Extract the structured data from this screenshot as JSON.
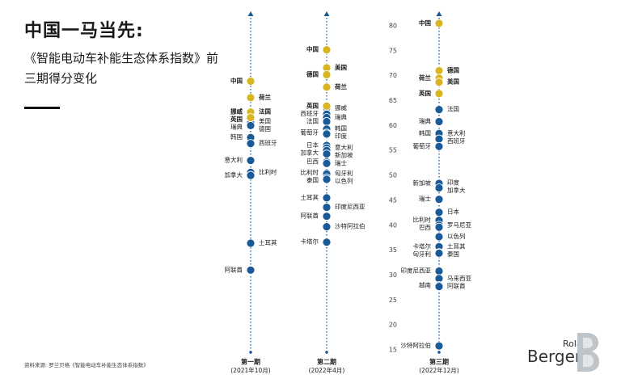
{
  "header": {
    "title": "中国一马当先:",
    "subtitle": "《智能电动车补能生态体系指数》前三期得分变化"
  },
  "footer": {
    "source": "资料来源: 罗兰贝格《智能电动车补能生态体系指数》",
    "logo_top": "Roland",
    "logo_main": "Berger"
  },
  "colors": {
    "highlight": "#D8B621",
    "normal": "#1A5A96",
    "axis": "#1A5A96"
  },
  "chart_data": {
    "type": "scatter",
    "y_axis": {
      "ticks": [
        80,
        75,
        70,
        65,
        60,
        55,
        50,
        45,
        40,
        35,
        30,
        25,
        20,
        15
      ],
      "ylim": [
        15,
        80
      ]
    },
    "periods": [
      {
        "name": "第一期",
        "date": "(2021年10月)",
        "points": [
          {
            "label": "中国",
            "value": 68.9,
            "highlight": true
          },
          {
            "label": "荷兰",
            "value": 65.6,
            "highlight": true
          },
          {
            "label": "挪威",
            "value": 62.7,
            "highlight": true
          },
          {
            "label": "法国",
            "value": 62.7,
            "highlight": true
          },
          {
            "label": "英国",
            "value": 61.6,
            "highlight": true
          },
          {
            "label": "美国",
            "value": 60.8,
            "highlight": false
          },
          {
            "label": "瑞典",
            "value": 60.5,
            "highlight": false
          },
          {
            "label": "德国",
            "value": 60.0,
            "highlight": false
          },
          {
            "label": "韩国",
            "value": 57.6,
            "highlight": false
          },
          {
            "label": "西班牙",
            "value": 56.4,
            "highlight": false
          },
          {
            "label": "意大利",
            "value": 53.0,
            "highlight": false
          },
          {
            "label": "比利时",
            "value": 50.6,
            "highlight": false
          },
          {
            "label": "加拿大",
            "value": 50.0,
            "highlight": false
          },
          {
            "label": "土耳其",
            "value": 36.4,
            "highlight": false
          },
          {
            "label": "阿联酋",
            "value": 31.0,
            "highlight": false
          }
        ]
      },
      {
        "name": "第二期",
        "date": "(2022年4月)",
        "points": [
          {
            "label": "中国",
            "value": 75.2,
            "highlight": true
          },
          {
            "label": "美国",
            "value": 71.6,
            "highlight": true
          },
          {
            "label": "德国",
            "value": 70.2,
            "highlight": true
          },
          {
            "label": "荷兰",
            "value": 67.7,
            "highlight": true
          },
          {
            "label": "英国",
            "value": 63.9,
            "highlight": true
          },
          {
            "label": "挪威",
            "value": 63.5,
            "highlight": false
          },
          {
            "label": "西班牙",
            "value": 62.3,
            "highlight": false
          },
          {
            "label": "瑞典",
            "value": 61.6,
            "highlight": false
          },
          {
            "label": "法国",
            "value": 60.8,
            "highlight": false
          },
          {
            "label": "韩国",
            "value": 59.3,
            "highlight": false
          },
          {
            "label": "葡萄牙",
            "value": 58.5,
            "highlight": false
          },
          {
            "label": "印度",
            "value": 58.3,
            "highlight": false
          },
          {
            "label": "日本",
            "value": 56.0,
            "highlight": false
          },
          {
            "label": "意大利",
            "value": 55.5,
            "highlight": false
          },
          {
            "label": "加拿大",
            "value": 55.0,
            "highlight": false
          },
          {
            "label": "新加坡",
            "value": 54.3,
            "highlight": false
          },
          {
            "label": "巴西",
            "value": 52.7,
            "highlight": false
          },
          {
            "label": "瑞士",
            "value": 52.4,
            "highlight": false
          },
          {
            "label": "比利时",
            "value": 50.5,
            "highlight": false
          },
          {
            "label": "匈牙利",
            "value": 50.3,
            "highlight": false
          },
          {
            "label": "泰国",
            "value": 49.5,
            "highlight": false
          },
          {
            "label": "以色列",
            "value": 49.2,
            "highlight": false
          },
          {
            "label": "土耳其",
            "value": 45.5,
            "highlight": false
          },
          {
            "label": "印度尼西亚",
            "value": 43.6,
            "highlight": false
          },
          {
            "label": "阿联酋",
            "value": 41.8,
            "highlight": false
          },
          {
            "label": "沙特阿拉伯",
            "value": 39.7,
            "highlight": false
          },
          {
            "label": "卡塔尔",
            "value": 36.6,
            "highlight": false
          }
        ]
      },
      {
        "name": "第三期",
        "date": "(2022年12月)",
        "points": [
          {
            "label": "中国",
            "value": 80.5,
            "highlight": true
          },
          {
            "label": "德国",
            "value": 71.0,
            "highlight": true
          },
          {
            "label": "荷兰",
            "value": 69.5,
            "highlight": true
          },
          {
            "label": "美国",
            "value": 68.7,
            "highlight": true
          },
          {
            "label": "英国",
            "value": 66.4,
            "highlight": true
          },
          {
            "label": "法国",
            "value": 63.2,
            "highlight": false
          },
          {
            "label": "瑞典",
            "value": 60.8,
            "highlight": false
          },
          {
            "label": "意大利",
            "value": 58.4,
            "highlight": false
          },
          {
            "label": "韩国",
            "value": 58.4,
            "highlight": false
          },
          {
            "label": "西班牙",
            "value": 57.3,
            "highlight": false
          },
          {
            "label": "葡萄牙",
            "value": 55.8,
            "highlight": false
          },
          {
            "label": "印度",
            "value": 48.5,
            "highlight": false
          },
          {
            "label": "新加坡",
            "value": 48.4,
            "highlight": false
          },
          {
            "label": "加拿大",
            "value": 47.5,
            "highlight": false
          },
          {
            "label": "瑞士",
            "value": 45.2,
            "highlight": false
          },
          {
            "label": "日本",
            "value": 42.6,
            "highlight": false
          },
          {
            "label": "比利时",
            "value": 41.0,
            "highlight": false
          },
          {
            "label": "罗马尼亚",
            "value": 40.0,
            "highlight": false
          },
          {
            "label": "巴西",
            "value": 39.6,
            "highlight": false
          },
          {
            "label": "以色列",
            "value": 37.7,
            "highlight": false
          },
          {
            "label": "卡塔尔",
            "value": 35.7,
            "highlight": false
          },
          {
            "label": "土耳其",
            "value": 35.7,
            "highlight": false
          },
          {
            "label": "匈牙利",
            "value": 34.5,
            "highlight": false
          },
          {
            "label": "泰国",
            "value": 34.4,
            "highlight": false
          },
          {
            "label": "印度尼西亚",
            "value": 30.8,
            "highlight": false
          },
          {
            "label": "马来西亚",
            "value": 29.3,
            "highlight": false
          },
          {
            "label": "越南",
            "value": 27.9,
            "highlight": false
          },
          {
            "label": "阿联酋",
            "value": 27.7,
            "highlight": false
          },
          {
            "label": "沙特阿拉伯",
            "value": 15.8,
            "highlight": false
          }
        ]
      }
    ]
  }
}
